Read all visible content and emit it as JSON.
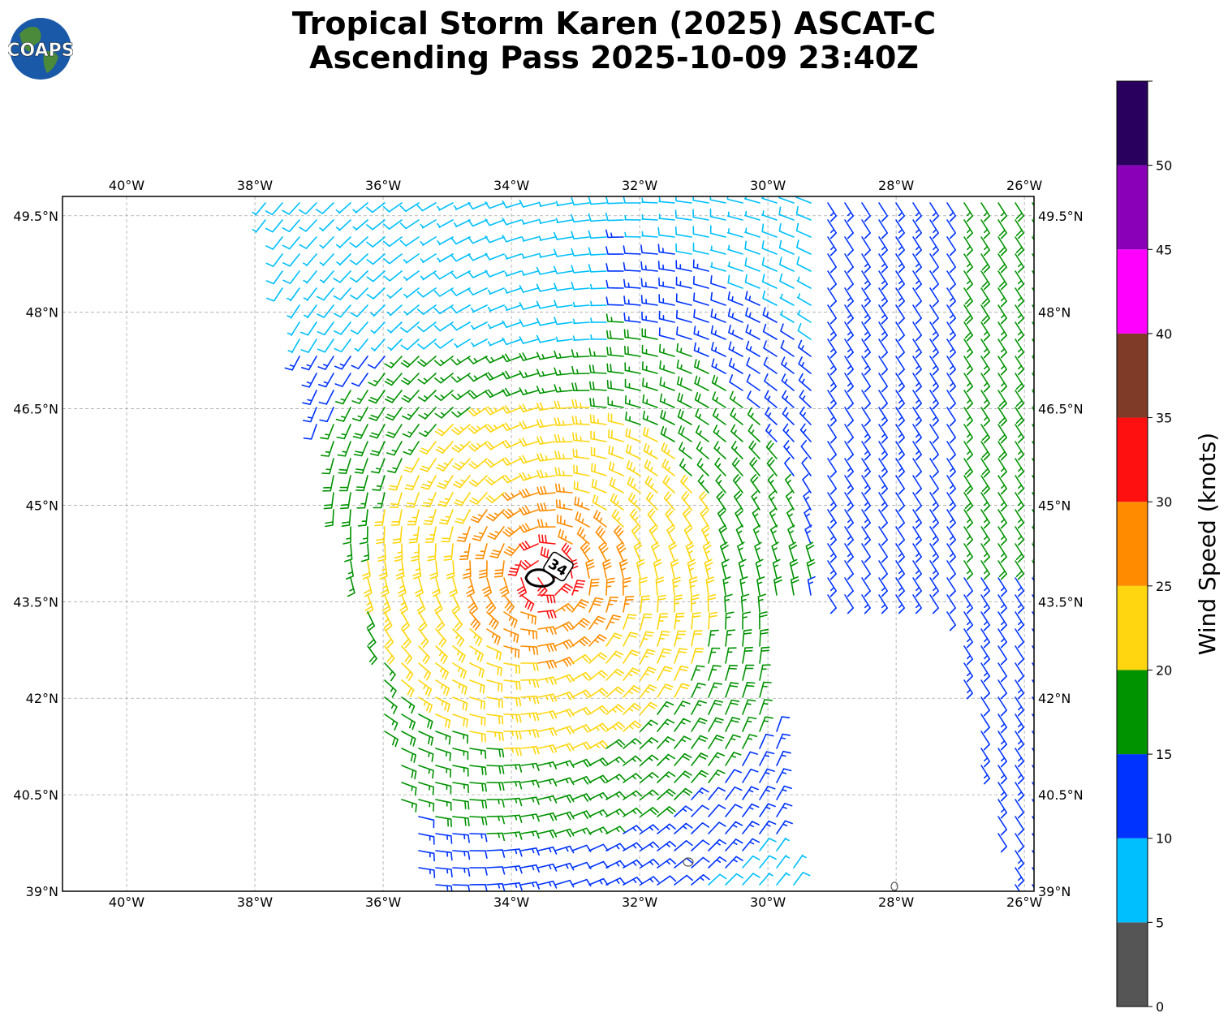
{
  "title_line1": "Tropical Storm Karen (2025) ASCAT-C",
  "title_line2": "Ascending Pass 2025-10-09 23:40Z",
  "logo_text": "COAPS",
  "map": {
    "lon_range": [
      -41,
      -25.85
    ],
    "lat_range": [
      39,
      49.8
    ],
    "lon_ticks": [
      "40°W",
      "38°W",
      "36°W",
      "34°W",
      "32°W",
      "30°W",
      "28°W",
      "26°W"
    ],
    "lat_ticks": [
      "39°N",
      "40.5°N",
      "42°N",
      "43.5°N",
      "45°N",
      "46.5°N",
      "48°N",
      "49.5°N"
    ],
    "grid": true,
    "storm_center": {
      "lon": -33.5,
      "lat": 43.9
    },
    "contour_label": "34"
  },
  "colorbar": {
    "label": "Wind Speed (knots)",
    "ticks": [
      "0",
      "5",
      "10",
      "15",
      "20",
      "25",
      "30",
      "35",
      "40",
      "45",
      "50"
    ],
    "bins": [
      {
        "min": 0,
        "max": 5,
        "color": "#555555"
      },
      {
        "min": 5,
        "max": 10,
        "color": "#00bfff"
      },
      {
        "min": 10,
        "max": 15,
        "color": "#0033ff"
      },
      {
        "min": 15,
        "max": 20,
        "color": "#009300"
      },
      {
        "min": 20,
        "max": 25,
        "color": "#ffd60f"
      },
      {
        "min": 25,
        "max": 30,
        "color": "#ff8c00"
      },
      {
        "min": 30,
        "max": 35,
        "color": "#ff1010"
      },
      {
        "min": 35,
        "max": 40,
        "color": "#7f3a28"
      },
      {
        "min": 40,
        "max": 45,
        "color": "#ff00ff"
      },
      {
        "min": 45,
        "max": 50,
        "color": "#8a00b8"
      },
      {
        "min": 50,
        "max": 55,
        "color": "#2a005f"
      }
    ]
  }
}
